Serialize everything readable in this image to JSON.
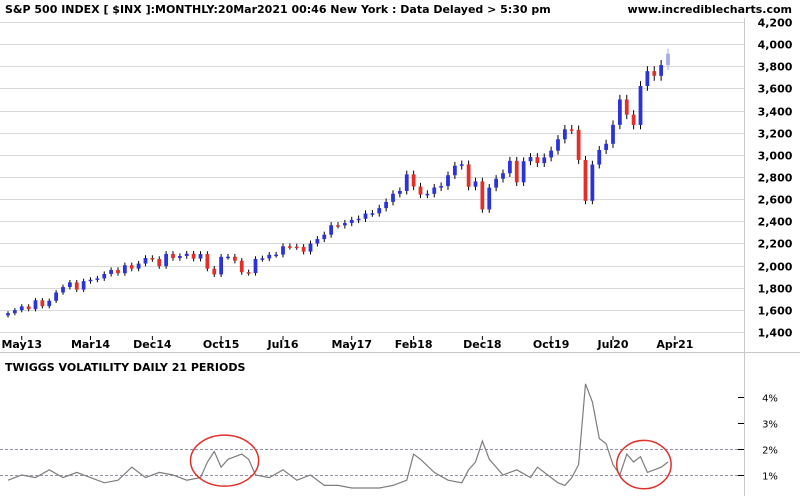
{
  "header": {
    "title": "S&P 500 INDEX [ $INX ]:MONTHLY:20Mar2021 00:46 New York : Data Delayed > 5:30 pm",
    "site": "www.incrediblecharts.com"
  },
  "colors": {
    "up": "#2b34d9",
    "down": "#e0302a",
    "last_bar": "#a7aee6",
    "wick": "#000000",
    "grid": "#d9d9d9",
    "panel_line": "#7d7d7d",
    "guide_line": "#9090a8",
    "annotation_circle": "#e0302a"
  },
  "chart_data": [
    {
      "type": "candlestick",
      "title": "S&P 500 INDEX [ $INX ]:MONTHLY:20Mar2021 00:46 New York : Data Delayed > 5:30 pm",
      "y_axis_side": "right",
      "ylim": [
        1400,
        4200
      ],
      "yticks": [
        1400,
        1600,
        1800,
        2000,
        2200,
        2400,
        2600,
        2800,
        3000,
        3200,
        3400,
        3600,
        3800,
        4000,
        4200
      ],
      "ytick_labels": [
        "1,400",
        "1,600",
        "1,800",
        "2,000",
        "2,200",
        "2,400",
        "2,600",
        "2,800",
        "3,000",
        "3,200",
        "3,400",
        "3,600",
        "3,800",
        "4,000",
        "4,200"
      ],
      "xtick_labels": [
        "May13",
        "Mar14",
        "Dec14",
        "Oct15",
        "Jul16",
        "May17",
        "Feb18",
        "Dec18",
        "Oct19",
        "Jul20",
        "Apr21"
      ],
      "grid": "horizontal",
      "series_close": [
        [
          "2013-03",
          1570
        ],
        [
          "2013-04",
          1597
        ],
        [
          "2013-05",
          1631
        ],
        [
          "2013-06",
          1606
        ],
        [
          "2013-07",
          1686
        ],
        [
          "2013-08",
          1633
        ],
        [
          "2013-09",
          1682
        ],
        [
          "2013-10",
          1757
        ],
        [
          "2013-11",
          1806
        ],
        [
          "2013-12",
          1848
        ],
        [
          "2014-01",
          1783
        ],
        [
          "2014-02",
          1859
        ],
        [
          "2014-03",
          1872
        ],
        [
          "2014-04",
          1884
        ],
        [
          "2014-05",
          1924
        ],
        [
          "2014-06",
          1960
        ],
        [
          "2014-07",
          1931
        ],
        [
          "2014-08",
          2003
        ],
        [
          "2014-09",
          1972
        ],
        [
          "2014-10",
          2018
        ],
        [
          "2014-11",
          2068
        ],
        [
          "2014-12",
          2059
        ],
        [
          "2015-01",
          1995
        ],
        [
          "2015-02",
          2105
        ],
        [
          "2015-03",
          2068
        ],
        [
          "2015-04",
          2086
        ],
        [
          "2015-05",
          2107
        ],
        [
          "2015-06",
          2063
        ],
        [
          "2015-07",
          2104
        ],
        [
          "2015-08",
          1972
        ],
        [
          "2015-09",
          1920
        ],
        [
          "2015-10",
          2079
        ],
        [
          "2015-11",
          2080
        ],
        [
          "2015-12",
          2044
        ],
        [
          "2016-01",
          1940
        ],
        [
          "2016-02",
          1932
        ],
        [
          "2016-03",
          2060
        ],
        [
          "2016-04",
          2065
        ],
        [
          "2016-05",
          2097
        ],
        [
          "2016-06",
          2099
        ],
        [
          "2016-07",
          2174
        ],
        [
          "2016-08",
          2171
        ],
        [
          "2016-09",
          2168
        ],
        [
          "2016-10",
          2126
        ],
        [
          "2016-11",
          2199
        ],
        [
          "2016-12",
          2239
        ],
        [
          "2017-01",
          2279
        ],
        [
          "2017-02",
          2364
        ],
        [
          "2017-03",
          2363
        ],
        [
          "2017-04",
          2384
        ],
        [
          "2017-05",
          2412
        ],
        [
          "2017-06",
          2423
        ],
        [
          "2017-07",
          2470
        ],
        [
          "2017-08",
          2472
        ],
        [
          "2017-09",
          2519
        ],
        [
          "2017-10",
          2575
        ],
        [
          "2017-11",
          2648
        ],
        [
          "2017-12",
          2674
        ],
        [
          "2018-01",
          2824
        ],
        [
          "2018-02",
          2714
        ],
        [
          "2018-03",
          2641
        ],
        [
          "2018-04",
          2648
        ],
        [
          "2018-05",
          2705
        ],
        [
          "2018-06",
          2718
        ],
        [
          "2018-07",
          2816
        ],
        [
          "2018-08",
          2902
        ],
        [
          "2018-09",
          2914
        ],
        [
          "2018-10",
          2712
        ],
        [
          "2018-11",
          2760
        ],
        [
          "2018-12",
          2507
        ],
        [
          "2019-01",
          2704
        ],
        [
          "2019-02",
          2784
        ],
        [
          "2019-03",
          2834
        ],
        [
          "2019-04",
          2946
        ],
        [
          "2019-05",
          2752
        ],
        [
          "2019-06",
          2942
        ],
        [
          "2019-07",
          2980
        ],
        [
          "2019-08",
          2926
        ],
        [
          "2019-09",
          2977
        ],
        [
          "2019-10",
          3038
        ],
        [
          "2019-11",
          3141
        ],
        [
          "2019-12",
          3231
        ],
        [
          "2020-01",
          3226
        ],
        [
          "2020-02",
          2954
        ],
        [
          "2020-03",
          2585
        ],
        [
          "2020-04",
          2912
        ],
        [
          "2020-05",
          3044
        ],
        [
          "2020-06",
          3100
        ],
        [
          "2020-07",
          3271
        ],
        [
          "2020-08",
          3500
        ],
        [
          "2020-09",
          3363
        ],
        [
          "2020-10",
          3270
        ],
        [
          "2020-11",
          3622
        ],
        [
          "2020-12",
          3756
        ],
        [
          "2021-01",
          3714
        ],
        [
          "2021-02",
          3811
        ],
        [
          "2021-03",
          3913
        ]
      ]
    },
    {
      "type": "line",
      "title": "TWIGGS VOLATILITY DAILY 21 PERIODS",
      "y_axis_side": "right",
      "ylim": [
        0.5,
        4.8
      ],
      "yticks": [
        1,
        2,
        3,
        4
      ],
      "ytick_labels": [
        "1%",
        "2%",
        "3%",
        "4%"
      ],
      "reference_lines": [
        1,
        2
      ],
      "annotations": [
        "circle around 2015-08 volatility bump",
        "circle around 2020-09 to 2021-02 volatility"
      ],
      "series": [
        {
          "values": [
            [
              "2013-03",
              0.8
            ],
            [
              "2013-05",
              1.0
            ],
            [
              "2013-07",
              0.9
            ],
            [
              "2013-09",
              1.2
            ],
            [
              "2013-11",
              0.9
            ],
            [
              "2014-01",
              1.1
            ],
            [
              "2014-03",
              0.9
            ],
            [
              "2014-05",
              0.7
            ],
            [
              "2014-07",
              0.8
            ],
            [
              "2014-09",
              1.3
            ],
            [
              "2014-11",
              0.9
            ],
            [
              "2015-01",
              1.1
            ],
            [
              "2015-03",
              1.0
            ],
            [
              "2015-05",
              0.8
            ],
            [
              "2015-07",
              0.9
            ],
            [
              "2015-08",
              1.5
            ],
            [
              "2015-09",
              1.9
            ],
            [
              "2015-10",
              1.3
            ],
            [
              "2015-11",
              1.6
            ],
            [
              "2016-01",
              1.8
            ],
            [
              "2016-02",
              1.6
            ],
            [
              "2016-03",
              1.0
            ],
            [
              "2016-05",
              0.9
            ],
            [
              "2016-07",
              1.2
            ],
            [
              "2016-09",
              0.8
            ],
            [
              "2016-11",
              1.0
            ],
            [
              "2017-01",
              0.6
            ],
            [
              "2017-03",
              0.6
            ],
            [
              "2017-05",
              0.5
            ],
            [
              "2017-07",
              0.5
            ],
            [
              "2017-09",
              0.5
            ],
            [
              "2017-11",
              0.6
            ],
            [
              "2018-01",
              0.8
            ],
            [
              "2018-02",
              1.8
            ],
            [
              "2018-03",
              1.6
            ],
            [
              "2018-05",
              1.1
            ],
            [
              "2018-07",
              0.8
            ],
            [
              "2018-09",
              0.7
            ],
            [
              "2018-10",
              1.2
            ],
            [
              "2018-11",
              1.5
            ],
            [
              "2018-12",
              2.3
            ],
            [
              "2019-01",
              1.6
            ],
            [
              "2019-03",
              1.0
            ],
            [
              "2019-05",
              1.2
            ],
            [
              "2019-07",
              0.9
            ],
            [
              "2019-08",
              1.3
            ],
            [
              "2019-09",
              1.1
            ],
            [
              "2019-11",
              0.7
            ],
            [
              "2019-12",
              0.6
            ],
            [
              "2020-01",
              0.9
            ],
            [
              "2020-02",
              1.4
            ],
            [
              "2020-03",
              4.5
            ],
            [
              "2020-04",
              3.8
            ],
            [
              "2020-05",
              2.4
            ],
            [
              "2020-06",
              2.2
            ],
            [
              "2020-07",
              1.4
            ],
            [
              "2020-08",
              1.0
            ],
            [
              "2020-09",
              1.8
            ],
            [
              "2020-10",
              1.5
            ],
            [
              "2020-11",
              1.7
            ],
            [
              "2020-12",
              1.1
            ],
            [
              "2021-01",
              1.2
            ],
            [
              "2021-02",
              1.3
            ],
            [
              "2021-03",
              1.5
            ]
          ]
        }
      ]
    }
  ]
}
